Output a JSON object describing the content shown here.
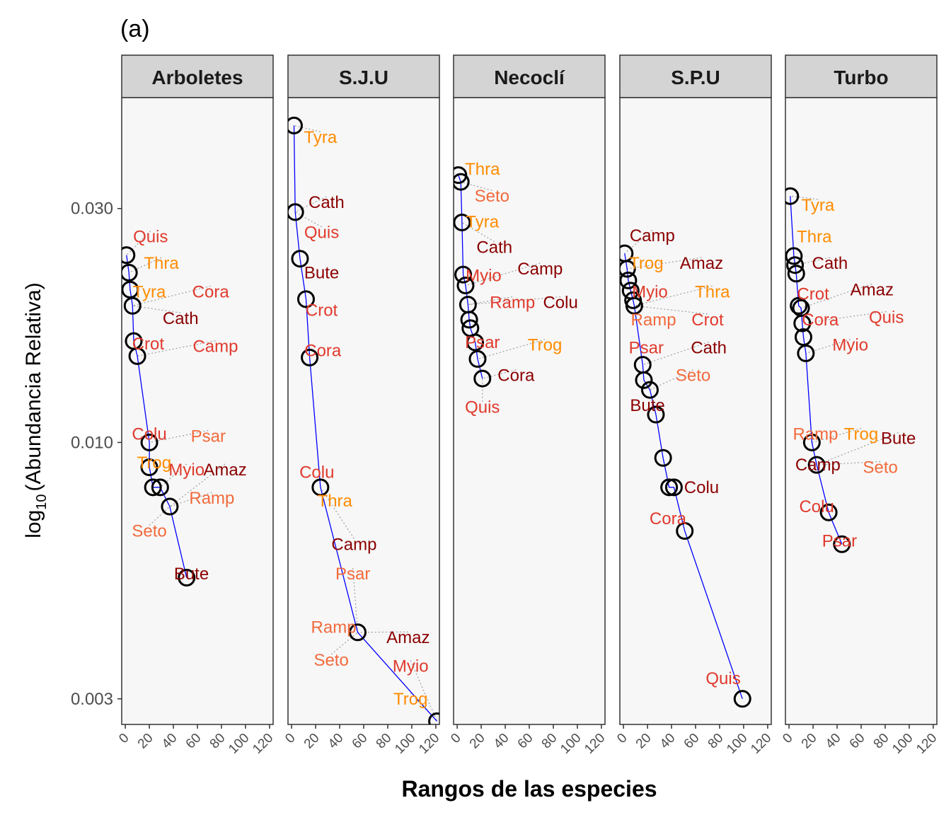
{
  "chart_data": {
    "type": "scatter",
    "panel_tag": "(a)",
    "xlabel": "Rangos de las especies",
    "ylabel_prefix": "log",
    "ylabel_sub": "10",
    "ylabel_rest": "(Abundancia Relativa)",
    "x_scale": "linear",
    "xlim": [
      -3,
      123
    ],
    "x_ticks": [
      0,
      20,
      40,
      60,
      80,
      100,
      120
    ],
    "x_tick_labels": [
      "0",
      "20",
      "40",
      "60",
      "80",
      "100",
      "120"
    ],
    "y_scale": "log10",
    "ylim": [
      0.00266,
      0.0505
    ],
    "y_ticks": [
      0.003,
      0.01,
      0.03
    ],
    "y_tick_labels": [
      "0.003",
      "0.010",
      "0.030"
    ],
    "grid": false,
    "colors": {
      "point": "#000000",
      "line": "#0000ff",
      "leader": "#9e9e9e",
      "strip_bg": "#d4d4d4",
      "panel_bg": "#f7f7f7",
      "dark_red": "#8b0000",
      "red": "#e03a2c",
      "coral": "#f26a3c",
      "orange": "#ff8c00"
    },
    "panels": [
      {
        "name": "Arboletes",
        "points": [
          {
            "x": 1,
            "y": 0.0241
          },
          {
            "x": 3,
            "y": 0.0222
          },
          {
            "x": 4,
            "y": 0.0205
          },
          {
            "x": 6,
            "y": 0.019
          },
          {
            "x": 7,
            "y": 0.0161
          },
          {
            "x": 10,
            "y": 0.015
          },
          {
            "x": 20,
            "y": 0.01
          },
          {
            "x": 20,
            "y": 0.0089
          },
          {
            "x": 23,
            "y": 0.0081
          },
          {
            "x": 29,
            "y": 0.0081
          },
          {
            "x": 37,
            "y": 0.0074
          },
          {
            "x": 51,
            "y": 0.0053
          }
        ],
        "labels": [
          {
            "text": "Quis",
            "x": 21,
            "y": 0.0263,
            "color": "#e03a2c"
          },
          {
            "text": "Thra",
            "x": 30,
            "y": 0.0232,
            "color": "#ff8c00"
          },
          {
            "text": "Tyra",
            "x": 20,
            "y": 0.0203,
            "color": "#ff8c00"
          },
          {
            "text": "Cora",
            "x": 71,
            "y": 0.0203,
            "color": "#e03a2c"
          },
          {
            "text": "Cath",
            "x": 46,
            "y": 0.0179,
            "color": "#8b0000"
          },
          {
            "text": "Crot",
            "x": 19,
            "y": 0.0159,
            "color": "#e03a2c"
          },
          {
            "text": "Camp",
            "x": 75,
            "y": 0.0157,
            "color": "#e03a2c"
          },
          {
            "text": "Colu",
            "x": 20,
            "y": 0.0104,
            "color": "#e03a2c"
          },
          {
            "text": "Psar",
            "x": 69,
            "y": 0.0103,
            "color": "#f26a3c"
          },
          {
            "text": "Trog",
            "x": 24,
            "y": 0.0091,
            "color": "#ff8c00"
          },
          {
            "text": "Myio",
            "x": 51,
            "y": 0.0088,
            "color": "#e03a2c"
          },
          {
            "text": "Amaz",
            "x": 83,
            "y": 0.0088,
            "color": "#8b0000"
          },
          {
            "text": "Ramp",
            "x": 72,
            "y": 0.0077,
            "color": "#f26a3c"
          },
          {
            "text": "Seto",
            "x": 20,
            "y": 0.0066,
            "color": "#f26a3c"
          },
          {
            "text": "Bute",
            "x": 55,
            "y": 0.0054,
            "color": "#8b0000"
          }
        ]
      },
      {
        "name": "S.J.U",
        "points": [
          {
            "x": 2,
            "y": 0.0443
          },
          {
            "x": 3,
            "y": 0.0295
          },
          {
            "x": 7,
            "y": 0.0237
          },
          {
            "x": 12,
            "y": 0.0196
          },
          {
            "x": 15,
            "y": 0.0149
          },
          {
            "x": 24,
            "y": 0.0081
          },
          {
            "x": 55,
            "y": 0.0041
          },
          {
            "x": 121,
            "y": 0.0027
          }
        ],
        "labels": [
          {
            "text": "Tyra",
            "x": 24,
            "y": 0.0419,
            "color": "#ff8c00"
          },
          {
            "text": "Cath",
            "x": 29,
            "y": 0.0309,
            "color": "#8b0000"
          },
          {
            "text": "Quis",
            "x": 25,
            "y": 0.0268,
            "color": "#e03a2c"
          },
          {
            "text": "Bute",
            "x": 25,
            "y": 0.0222,
            "color": "#8b0000"
          },
          {
            "text": "Crot",
            "x": 25,
            "y": 0.0186,
            "color": "#e03a2c"
          },
          {
            "text": "Cora",
            "x": 26,
            "y": 0.0154,
            "color": "#e03a2c"
          },
          {
            "text": "Colu",
            "x": 21,
            "y": 0.0087,
            "color": "#e03a2c"
          },
          {
            "text": "Thra",
            "x": 36,
            "y": 0.0076,
            "color": "#ff8c00"
          },
          {
            "text": "Camp",
            "x": 52,
            "y": 0.0062,
            "color": "#8b0000"
          },
          {
            "text": "Psar",
            "x": 51,
            "y": 0.0054,
            "color": "#f26a3c"
          },
          {
            "text": "Ramp",
            "x": 35,
            "y": 0.0042,
            "color": "#f26a3c"
          },
          {
            "text": "Amaz",
            "x": 97,
            "y": 0.004,
            "color": "#8b0000"
          },
          {
            "text": "Seto",
            "x": 33,
            "y": 0.0036,
            "color": "#f26a3c"
          },
          {
            "text": "Myio",
            "x": 99,
            "y": 0.0035,
            "color": "#e03a2c"
          },
          {
            "text": "Trog",
            "x": 99,
            "y": 0.003,
            "color": "#ff8c00"
          }
        ]
      },
      {
        "name": "Necoclí",
        "points": [
          {
            "x": 1,
            "y": 0.0351
          },
          {
            "x": 3,
            "y": 0.034
          },
          {
            "x": 4,
            "y": 0.0281
          },
          {
            "x": 5,
            "y": 0.022
          },
          {
            "x": 7,
            "y": 0.0209
          },
          {
            "x": 9,
            "y": 0.0191
          },
          {
            "x": 10,
            "y": 0.0178
          },
          {
            "x": 11,
            "y": 0.0171
          },
          {
            "x": 15,
            "y": 0.016
          },
          {
            "x": 17,
            "y": 0.0148
          },
          {
            "x": 21,
            "y": 0.0135
          }
        ],
        "labels": [
          {
            "text": "Thra",
            "x": 21,
            "y": 0.0361,
            "color": "#ff8c00"
          },
          {
            "text": "Seto",
            "x": 29,
            "y": 0.0318,
            "color": "#f26a3c"
          },
          {
            "text": "Tyra",
            "x": 21,
            "y": 0.0282,
            "color": "#ff8c00"
          },
          {
            "text": "Cath",
            "x": 31,
            "y": 0.025,
            "color": "#8b0000"
          },
          {
            "text": "Camp",
            "x": 69,
            "y": 0.0226,
            "color": "#8b0000"
          },
          {
            "text": "Myio",
            "x": 22,
            "y": 0.0219,
            "color": "#e03a2c"
          },
          {
            "text": "Ramp",
            "x": 46,
            "y": 0.0193,
            "color": "#e03a2c"
          },
          {
            "text": "Colu",
            "x": 86,
            "y": 0.0193,
            "color": "#8b0000"
          },
          {
            "text": "Psar",
            "x": 21,
            "y": 0.016,
            "color": "#e03a2c"
          },
          {
            "text": "Trog",
            "x": 73,
            "y": 0.0158,
            "color": "#ff8c00"
          },
          {
            "text": "Cora",
            "x": 49,
            "y": 0.0137,
            "color": "#8b0000"
          },
          {
            "text": "Quis",
            "x": 21,
            "y": 0.0118,
            "color": "#e03a2c"
          }
        ]
      },
      {
        "name": "S.P.U",
        "points": [
          {
            "x": 1,
            "y": 0.0243
          },
          {
            "x": 3,
            "y": 0.0226
          },
          {
            "x": 4,
            "y": 0.0214
          },
          {
            "x": 6,
            "y": 0.0204
          },
          {
            "x": 8,
            "y": 0.0195
          },
          {
            "x": 9,
            "y": 0.019
          },
          {
            "x": 16,
            "y": 0.0144
          },
          {
            "x": 17,
            "y": 0.0134
          },
          {
            "x": 22,
            "y": 0.0128
          },
          {
            "x": 27,
            "y": 0.0114
          },
          {
            "x": 33,
            "y": 0.0093
          },
          {
            "x": 38,
            "y": 0.0081
          },
          {
            "x": 42,
            "y": 0.0081
          },
          {
            "x": 51,
            "y": 0.0066
          },
          {
            "x": 99,
            "y": 0.003
          }
        ],
        "labels": [
          {
            "text": "Camp",
            "x": 24,
            "y": 0.0264,
            "color": "#8b0000"
          },
          {
            "text": "Trog",
            "x": 19,
            "y": 0.0232,
            "color": "#ff8c00"
          },
          {
            "text": "Amaz",
            "x": 65,
            "y": 0.0232,
            "color": "#8b0000"
          },
          {
            "text": "Myio",
            "x": 22,
            "y": 0.0203,
            "color": "#e03a2c"
          },
          {
            "text": "Thra",
            "x": 74,
            "y": 0.0203,
            "color": "#ff8c00"
          },
          {
            "text": "Ramp",
            "x": 25,
            "y": 0.0178,
            "color": "#f26a3c"
          },
          {
            "text": "Crot",
            "x": 70,
            "y": 0.0178,
            "color": "#e03a2c"
          },
          {
            "text": "Psar",
            "x": 19,
            "y": 0.0156,
            "color": "#e03a2c"
          },
          {
            "text": "Cath",
            "x": 71,
            "y": 0.0156,
            "color": "#8b0000"
          },
          {
            "text": "Seto",
            "x": 58,
            "y": 0.0137,
            "color": "#f26a3c"
          },
          {
            "text": "Bute",
            "x": 20,
            "y": 0.0119,
            "color": "#8b0000"
          },
          {
            "text": "Colu",
            "x": 65,
            "y": 0.0081,
            "color": "#8b0000"
          },
          {
            "text": "Cora",
            "x": 37,
            "y": 0.007,
            "color": "#e03a2c"
          },
          {
            "text": "Quis",
            "x": 83,
            "y": 0.0033,
            "color": "#e03a2c"
          }
        ]
      },
      {
        "name": "Turbo",
        "points": [
          {
            "x": 1,
            "y": 0.0318
          },
          {
            "x": 4,
            "y": 0.024
          },
          {
            "x": 5,
            "y": 0.023
          },
          {
            "x": 6,
            "y": 0.0221
          },
          {
            "x": 8,
            "y": 0.019
          },
          {
            "x": 10,
            "y": 0.0188
          },
          {
            "x": 11,
            "y": 0.0175
          },
          {
            "x": 12,
            "y": 0.0164
          },
          {
            "x": 14,
            "y": 0.0152
          },
          {
            "x": 19,
            "y": 0.01
          },
          {
            "x": 23,
            "y": 0.009
          },
          {
            "x": 33,
            "y": 0.0072
          },
          {
            "x": 44,
            "y": 0.0062
          }
        ],
        "labels": [
          {
            "text": "Tyra",
            "x": 24,
            "y": 0.0305,
            "color": "#ff8c00"
          },
          {
            "text": "Thra",
            "x": 21,
            "y": 0.0263,
            "color": "#ff8c00"
          },
          {
            "text": "Cath",
            "x": 34,
            "y": 0.0232,
            "color": "#8b0000"
          },
          {
            "text": "Crot",
            "x": 20,
            "y": 0.0201,
            "color": "#e03a2c"
          },
          {
            "text": "Amaz",
            "x": 69,
            "y": 0.0205,
            "color": "#8b0000"
          },
          {
            "text": "Cora",
            "x": 26,
            "y": 0.0178,
            "color": "#e03a2c"
          },
          {
            "text": "Quis",
            "x": 81,
            "y": 0.018,
            "color": "#e03a2c"
          },
          {
            "text": "Myio",
            "x": 51,
            "y": 0.0158,
            "color": "#e03a2c"
          },
          {
            "text": "Ramp",
            "x": 22,
            "y": 0.0104,
            "color": "#f26a3c"
          },
          {
            "text": "Trog",
            "x": 60,
            "y": 0.0104,
            "color": "#ff8c00"
          },
          {
            "text": "Bute",
            "x": 91,
            "y": 0.0102,
            "color": "#8b0000"
          },
          {
            "text": "Camp",
            "x": 24,
            "y": 0.009,
            "color": "#8b0000"
          },
          {
            "text": "Seto",
            "x": 76,
            "y": 0.0089,
            "color": "#f26a3c"
          },
          {
            "text": "Colu",
            "x": 23,
            "y": 0.0074,
            "color": "#e03a2c"
          },
          {
            "text": "Psar",
            "x": 42,
            "y": 0.0063,
            "color": "#e03a2c"
          }
        ]
      }
    ]
  }
}
